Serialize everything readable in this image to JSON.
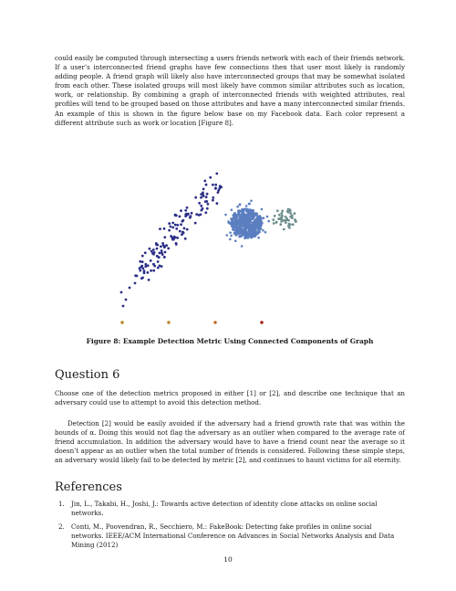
{
  "intro": "could easily be computed through intersecting a users friends network with each of their friends network. If a user’s interconnected friend graphs have few connections then that user most likely is randomly adding people. A friend graph will likely also have interconnected groups that may be somewhat isolated from each other. These isolated groups will most likely have common similar attributes such as location, work, or relationship. By combining a graph of interconnected friends with weighted attributes, real profiles will tend to be grouped based on those attributes and have a many interconnected similar friends. An example of this is shown in the figure below base on my Facebook data. Each color represent a different attribute such as work or location [Figure 8].",
  "figure": {
    "caption": "Figure 8: Example Detection Metric Using Connected Components of Graph",
    "colors": {
      "navy": "#2b2f87",
      "steel": "#5b7ec0",
      "sage": "#6f8f8e",
      "gold": "#b8892a",
      "orange": "#c26a2a",
      "red": "#a8261d"
    }
  },
  "question6": {
    "heading": "Question 6",
    "prompt": "Choose one of the detection metrics proposed in either [1] or [2], and describe one technique that an adversary could use to attempt to avoid this detection method.",
    "answer": "Detection [2] would be easily avoided if the adversary had a friend growth rate that was within the bounds of α. Doing this would not flag the adversary as an outlier when compared to the average rate of friend accumulation. In addition the adversary would have to have a friend count near the average so it doesn’t appear as an outlier when the total number of friends is considered. Following these simple steps, an adversary would likely fail to be detected by metric [2], and continues to haunt victims for all eternity."
  },
  "references": {
    "heading": "References",
    "items": [
      {
        "num": "1.",
        "text": "Jin, L., Takabi, H., Joshi, J.: Towards active detection of identity clone attacks on online social networks."
      },
      {
        "num": "2.",
        "text": "Conti, M., Poovendran, R., Secchiero, M.: FakeBook: Detecting fake profiles in online social networks. IEEE/ACM International Conference on Advances in Social Networks Analysis and Data Mining (2012)"
      }
    ]
  },
  "page_number": "10"
}
